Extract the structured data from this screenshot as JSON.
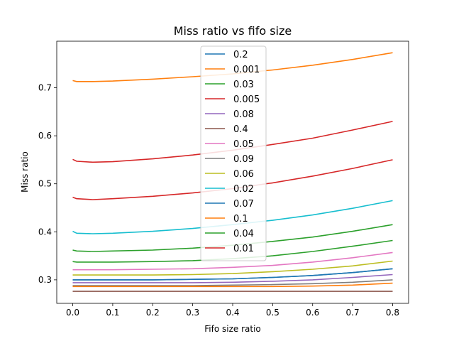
{
  "chart_data": {
    "type": "line",
    "title": "Miss ratio vs fifo size",
    "xlabel": "Fifo size ratio",
    "ylabel": "Miss ratio",
    "xlim": [
      -0.04,
      0.84
    ],
    "ylim": [
      0.251,
      0.797
    ],
    "xticks": [
      0.0,
      0.1,
      0.2,
      0.3,
      0.4,
      0.5,
      0.6,
      0.7,
      0.8
    ],
    "xtick_labels": [
      "0.0",
      "0.1",
      "0.2",
      "0.3",
      "0.4",
      "0.5",
      "0.6",
      "0.7",
      "0.8"
    ],
    "yticks": [
      0.3,
      0.4,
      0.5,
      0.6,
      0.7
    ],
    "ytick_labels": [
      "0.3",
      "0.4",
      "0.5",
      "0.6",
      "0.7"
    ],
    "grid": false,
    "legend_position": "top-center",
    "x": [
      0.0,
      0.01,
      0.05,
      0.1,
      0.2,
      0.3,
      0.4,
      0.5,
      0.6,
      0.7,
      0.8
    ],
    "series": [
      {
        "name": "0.2",
        "color": "#1f77b4",
        "values": [
          0.3,
          0.3,
          0.3,
          0.3,
          0.3,
          0.301,
          0.302,
          0.305,
          0.309,
          0.315,
          0.323
        ]
      },
      {
        "name": "0.001",
        "color": "#ff7f0e",
        "values": [
          0.715,
          0.713,
          0.713,
          0.714,
          0.718,
          0.723,
          0.729,
          0.737,
          0.747,
          0.759,
          0.773
        ]
      },
      {
        "name": "0.03",
        "color": "#2ca02c",
        "values": [
          0.338,
          0.337,
          0.337,
          0.337,
          0.338,
          0.34,
          0.344,
          0.35,
          0.359,
          0.37,
          0.382
        ]
      },
      {
        "name": "0.005",
        "color": "#d62728",
        "values": [
          0.551,
          0.547,
          0.545,
          0.546,
          0.552,
          0.56,
          0.57,
          0.582,
          0.595,
          0.612,
          0.63
        ]
      },
      {
        "name": "0.08",
        "color": "#9467bd",
        "values": [
          0.294,
          0.294,
          0.294,
          0.294,
          0.294,
          0.294,
          0.295,
          0.297,
          0.3,
          0.305,
          0.311
        ]
      },
      {
        "name": "0.4",
        "color": "#8c564b",
        "values": [
          0.276,
          0.276,
          0.276,
          0.276,
          0.276,
          0.276,
          0.276,
          0.276,
          0.276,
          0.276,
          0.276
        ]
      },
      {
        "name": "0.05",
        "color": "#e377c2",
        "values": [
          0.321,
          0.321,
          0.321,
          0.321,
          0.322,
          0.323,
          0.326,
          0.33,
          0.337,
          0.346,
          0.357
        ]
      },
      {
        "name": "0.09",
        "color": "#7f7f7f",
        "values": [
          0.288,
          0.288,
          0.288,
          0.288,
          0.288,
          0.288,
          0.289,
          0.29,
          0.292,
          0.295,
          0.3
        ]
      },
      {
        "name": "0.06",
        "color": "#bcbd22",
        "values": [
          0.31,
          0.31,
          0.31,
          0.31,
          0.31,
          0.311,
          0.313,
          0.317,
          0.322,
          0.329,
          0.339
        ]
      },
      {
        "name": "0.02",
        "color": "#17becf",
        "values": [
          0.401,
          0.397,
          0.396,
          0.397,
          0.401,
          0.407,
          0.415,
          0.424,
          0.435,
          0.449,
          0.465
        ]
      },
      {
        "name": "0.07",
        "color": "#1f77b4",
        "values": [
          0.3,
          0.3,
          0.3,
          0.3,
          0.3,
          0.301,
          0.302,
          0.305,
          0.309,
          0.315,
          0.323
        ]
      },
      {
        "name": "0.1",
        "color": "#ff7f0e",
        "values": [
          0.286,
          0.286,
          0.286,
          0.286,
          0.286,
          0.286,
          0.286,
          0.286,
          0.287,
          0.289,
          0.293
        ]
      },
      {
        "name": "0.04",
        "color": "#2ca02c",
        "values": [
          0.362,
          0.36,
          0.359,
          0.36,
          0.362,
          0.366,
          0.372,
          0.38,
          0.389,
          0.401,
          0.415
        ]
      },
      {
        "name": "0.01",
        "color": "#d62728",
        "values": [
          0.472,
          0.469,
          0.467,
          0.469,
          0.474,
          0.481,
          0.49,
          0.502,
          0.516,
          0.532,
          0.55
        ]
      }
    ]
  }
}
